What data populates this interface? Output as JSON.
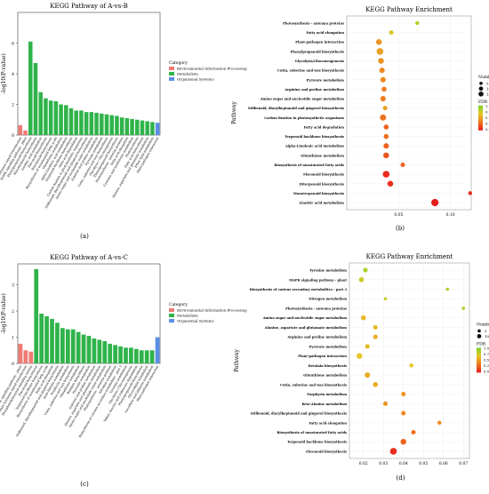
{
  "chart_data": [
    {
      "panel": "(a)",
      "type": "bar",
      "title": "KEGG Pathway of A-vs-B",
      "ylabel": "-log10(P-value)",
      "ylim": [
        0,
        8
      ],
      "yticks": [
        0,
        2,
        4,
        6
      ],
      "legend_title": "Category",
      "legend_position": "right",
      "categories": [
        "Plant hormone signal transduction",
        "MAPK signaling pathway - plant",
        "Phenylpropanoid biosynthesis",
        "Monoterpenoid biosynthesis",
        "Linoleic acid metabolism",
        "Flavonoid biosynthesis",
        "Diterpenoid biosynthesis",
        "Biosynthesis of unsaturated fatty acids",
        "Glutathione metabolism",
        "alpha-Linolenic acid metabolism",
        "Terpenoid backbone biosynthesis",
        "Fatty acid degradation",
        "Carbon fixation in photosynthetic organisms",
        "Stilbenoid, diarylheptanoid and gingerol biosynthesis",
        "Amino sugar and nucleotide sugar metabolism",
        "Arginine and proline metabolism",
        "Pyruvate metabolism",
        "Cutin, suberine and wax biosynthesis",
        "Glycolysis / Gluconeogenesis",
        "Phenylpropanoid biosynthesis",
        "Photosynthesis - antenna proteins",
        "Fatty acid elongation",
        "Cysteine and methionine metabolism",
        "Photosynthesis",
        "Fatty acid biosynthesis",
        "Alanine, aspartate and glutamate metabolism",
        "Ether lipid metabolism",
        "Plant-pathogen interaction"
      ],
      "values": [
        0.65,
        0.3,
        6.1,
        4.7,
        2.8,
        2.4,
        2.25,
        2.2,
        2.0,
        1.95,
        1.75,
        1.6,
        1.6,
        1.5,
        1.5,
        1.45,
        1.4,
        1.35,
        1.3,
        1.25,
        1.15,
        1.1,
        1.05,
        1.0,
        0.95,
        0.9,
        0.85,
        0.8
      ],
      "category_of": [
        "env",
        "env",
        "met",
        "met",
        "met",
        "met",
        "met",
        "met",
        "met",
        "met",
        "met",
        "met",
        "met",
        "met",
        "met",
        "met",
        "met",
        "met",
        "met",
        "met",
        "met",
        "met",
        "met",
        "met",
        "met",
        "met",
        "met",
        "org"
      ]
    },
    {
      "panel": "(b)",
      "type": "scatter",
      "title": "KEGG Pathway Enrichment",
      "ylabel": "Pathway",
      "xticks": [
        0.05,
        0.1
      ],
      "xlim": [
        0.0,
        0.12
      ],
      "size_legend_title": "Number",
      "size_levels": [
        5,
        10,
        15
      ],
      "color_legend_title": "FDR",
      "color_ticks": [
        1.0,
        0.75,
        0.5,
        0.25,
        0.0
      ],
      "pathways": [
        "Photosynthesis - antenna proteins",
        "Fatty acid elongation",
        "Plant-pathogen interaction",
        "Phenylpropanoid biosynthesis",
        "Glycolysis/Gluconeogenesis",
        "Cutin, suberine and wax biosynthesis",
        "Pyruvate metabolism",
        "Arginine and proline metabolism",
        "Amino sugar and nucleotide sugar metabolism",
        "Stilbenoid, diarylheptanoid and gingerol biosynthesis",
        "Carbon fixation in photosynthetic organisms",
        "Fatty acid degradation",
        "Terpenoid backbone biosynthesis",
        "alpha-Linolenic acid metabolism",
        "Glutathione metabolism",
        "Biosynthesis of unsaturated fatty acids",
        "Flavonoid biosynthesis",
        "Diterpenoid biosynthesis",
        "Monoterpenoid biosynthesis",
        "Linoleic acid metabolism"
      ],
      "x": [
        0.068,
        0.043,
        0.031,
        0.032,
        0.033,
        0.034,
        0.035,
        0.036,
        0.035,
        0.037,
        0.035,
        0.038,
        0.038,
        0.038,
        0.038,
        0.054,
        0.038,
        0.042,
        0.119,
        0.085
      ],
      "number": [
        2,
        3,
        6,
        9,
        6,
        5,
        5,
        4,
        5,
        3,
        7,
        4,
        4,
        5,
        6,
        3,
        9,
        6,
        2,
        11
      ],
      "fdr": [
        0.8,
        0.7,
        0.45,
        0.5,
        0.45,
        0.4,
        0.4,
        0.35,
        0.35,
        0.5,
        0.3,
        0.25,
        0.3,
        0.25,
        0.2,
        0.25,
        0.05,
        0.05,
        0.05,
        0.0
      ]
    },
    {
      "panel": "(c)",
      "type": "bar",
      "title": "KEGG Pathway of A-vs-C",
      "ylabel": "-log10(P-value)",
      "ylim": [
        0,
        3.8
      ],
      "yticks": [
        0,
        1,
        2,
        3
      ],
      "legend_title": "Category",
      "legend_position": "right",
      "categories": [
        "MAPK signaling pathway - plant",
        "Plant hormone signal transduction",
        "Phosphatidylinositol signaling system",
        "Flavonoid biosynthesis",
        "Terpenoid backbone biosynthesis",
        "Biosynthesis of unsaturated fatty acids",
        "Fatty acid elongation",
        "Stilbenoid, diarylheptanoid and gingerol biosynthesis",
        "beta-Alanine metabolism",
        "Porphyrin metabolism",
        "Cutin, suberine and wax biosynthesis",
        "Glutathione metabolism",
        "Betalain biosynthesis",
        "Pyruvate metabolism",
        "Arginine and proline metabolism",
        "Alanine, aspartate and glutamate metabolism",
        "Amino sugar and nucleotide sugar metabolism",
        "Photosynthesis - antenna proteins",
        "Nitrogen metabolism",
        "Biosynthesis of various secondary metabolites - part 3",
        "Tyrosine metabolism",
        "Glycolysis / Gluconeogenesis",
        "Valine, leucine and isoleucine degradation",
        "Phenylpropanoid biosynthesis",
        "Glycerolipid metabolism",
        "Ascorbate and aldarate metabolism",
        "Plant-pathogen interaction"
      ],
      "values": [
        0.75,
        0.5,
        0.45,
        3.6,
        1.9,
        1.8,
        1.7,
        1.55,
        1.35,
        1.3,
        1.3,
        1.2,
        1.1,
        1.05,
        0.95,
        0.9,
        0.85,
        0.75,
        0.7,
        0.65,
        0.6,
        0.6,
        0.55,
        0.5,
        0.5,
        0.5,
        1.0
      ],
      "category_of": [
        "env",
        "env",
        "env",
        "met",
        "met",
        "met",
        "met",
        "met",
        "met",
        "met",
        "met",
        "met",
        "met",
        "met",
        "met",
        "met",
        "met",
        "met",
        "met",
        "met",
        "met",
        "met",
        "met",
        "met",
        "met",
        "met",
        "org"
      ]
    },
    {
      "panel": "(d)",
      "type": "scatter",
      "title": "KEGG Pathway Enrichment",
      "ylabel": "Pathway",
      "xticks": [
        0.02,
        0.03,
        0.04,
        0.05,
        0.06,
        0.07
      ],
      "xlim": [
        0.013,
        0.073
      ],
      "size_legend_title": "Number",
      "size_levels": [
        5,
        10
      ],
      "color_legend_title": "FDR",
      "color_ticks": [
        1.0,
        0.75,
        0.5,
        0.25,
        0.0
      ],
      "pathways": [
        "Tyrosine metabolism",
        "MAPK signaling pathway - plant",
        "Biosynthesis of various secondary metabolites - part 3",
        "Nitrogen metabolism",
        "Photosynthesis - antenna proteins",
        "Amino sugar and nucleotide sugar metabolism",
        "Alanine, aspartate and glutamate metabolism",
        "Arginine and proline metabolism",
        "Pyruvate metabolism",
        "Plant-pathogen interaction",
        "Betalain biosynthesis",
        "Glutathione metabolism",
        "Cutin, suberine and wax biosynthesis",
        "Porphyrin metabolism",
        "beta-Alanine metabolism",
        "Stilbenoid, diarylheptanoid and gingerol biosynthesis",
        "Fatty acid elongation",
        "Biosynthesis of unsaturated fatty acids",
        "Terpenoid backbone biosynthesis",
        "Flavonoid biosynthesis"
      ],
      "x": [
        0.021,
        0.019,
        0.062,
        0.031,
        0.07,
        0.02,
        0.026,
        0.026,
        0.022,
        0.018,
        0.044,
        0.022,
        0.026,
        0.04,
        0.031,
        0.04,
        0.058,
        0.045,
        0.04,
        0.035
      ],
      "number": [
        3,
        4,
        1,
        1,
        1,
        4,
        3,
        3,
        3,
        6,
        2,
        5,
        4,
        3,
        3,
        3,
        2,
        3,
        6,
        9
      ],
      "fdr": [
        0.85,
        0.75,
        0.85,
        0.75,
        0.85,
        0.6,
        0.6,
        0.55,
        0.6,
        0.65,
        0.65,
        0.55,
        0.55,
        0.45,
        0.45,
        0.4,
        0.4,
        0.3,
        0.25,
        0.05
      ]
    }
  ],
  "legend": {
    "env": "Environmental Information Processing",
    "met": "Metabolism",
    "org": "Organismal Systems"
  },
  "colors": {
    "env": "#ef7b73",
    "met": "#2fb34a",
    "org": "#5a8fe6"
  }
}
